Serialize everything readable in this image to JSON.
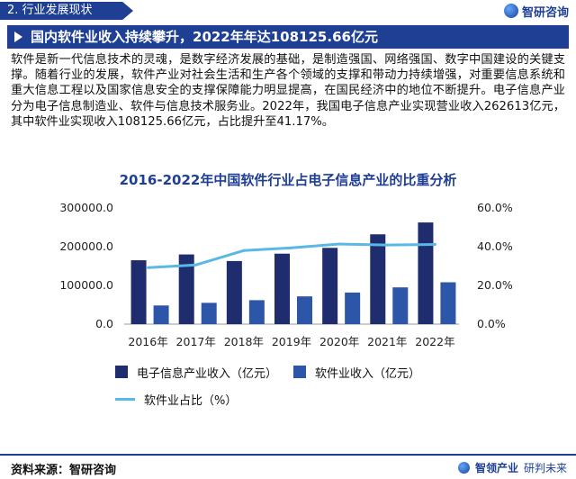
{
  "header": {
    "section": "2. 行业发展现状",
    "brand": "智研咨询"
  },
  "headline": "国内软件业收入持续攀升，2022年年达108125.66亿元",
  "paragraph": "软件是新一代信息技术的灵魂，是数字经济发展的基础，是制造强国、网络强国、数字中国建设的关键支撑。随着行业的发展，软件产业对社会生活和生产各个领域的支撑和带动力持续增强，对重要信息系统和重大信息工程以及国家信息安全的支撑保障能力明显提高，在国民经济中的地位不断提升。电子信息产业分为电子信息制造业、软件与信息技术服务业。2022年，我国电子信息产业实现营业收入262613亿元，其中软件业实现收入108125.66亿元，占比提升至41.17%。",
  "chart_data": {
    "type": "bar",
    "title": "2016-2022年中国软件行业占电子信息产业的比重分析",
    "categories": [
      "2016年",
      "2017年",
      "2018年",
      "2019年",
      "2020年",
      "2021年",
      "2022年"
    ],
    "series": [
      {
        "name": "电子信息产业收入（亿元）",
        "type": "bar",
        "axis": "left",
        "color": "#1f2d6e",
        "values": [
          165000,
          180000,
          163000,
          182000,
          197000,
          232000,
          262613
        ]
      },
      {
        "name": "软件业收入（亿元）",
        "type": "bar",
        "axis": "left",
        "color": "#2e56a8",
        "values": [
          48232,
          55037,
          61909,
          71768,
          81616,
          94994,
          108125.66
        ]
      },
      {
        "name": "软件业占比（%）",
        "type": "line",
        "axis": "right",
        "color": "#59b8e6",
        "values": [
          29.2,
          30.6,
          38.0,
          39.4,
          41.4,
          40.9,
          41.17
        ]
      }
    ],
    "y_left": {
      "ticks": [
        "0.0",
        "100000.0",
        "200000.0",
        "300000.0"
      ],
      "range": [
        0,
        300000
      ]
    },
    "y_right": {
      "ticks": [
        "0.0%",
        "20.0%",
        "40.0%",
        "60.0%"
      ],
      "range": [
        0,
        60
      ]
    },
    "grid": false,
    "legend_position": "bottom"
  },
  "footer": {
    "source": "资料来源：智研咨询",
    "brand": "智领产业",
    "slogan": "研判未来"
  },
  "colors": {
    "brand_blue": "#1f3f95",
    "bar_dark": "#1f2d6e",
    "bar_mid": "#2e56a8",
    "line": "#59b8e6"
  }
}
